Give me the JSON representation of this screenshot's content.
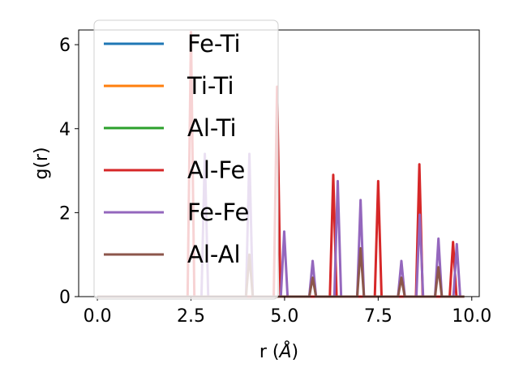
{
  "chart_data": {
    "type": "line",
    "title": "",
    "xlabel": "r (",
    "xlabel_unit": "Å",
    "xlabel_close": ")",
    "ylabel": "g(r)",
    "xlim": [
      -0.5,
      10.2
    ],
    "ylim": [
      0,
      6.35
    ],
    "xticks": [
      0.0,
      2.5,
      5.0,
      7.5,
      10.0
    ],
    "xtick_labels": [
      "0.0",
      "2.5",
      "5.0",
      "7.5",
      "10.0"
    ],
    "yticks": [
      0,
      2,
      4,
      6
    ],
    "ytick_labels": [
      "0",
      "2",
      "4",
      "6"
    ],
    "grid": false,
    "legend_position": "top-left",
    "peak_width": 0.09,
    "series": [
      {
        "name": "Fe-Ti",
        "color": "#1f77b4",
        "peaks": []
      },
      {
        "name": "Ti-Ti",
        "color": "#ff7f0e",
        "peaks": []
      },
      {
        "name": "Al-Ti",
        "color": "#2ca02c",
        "peaks": []
      },
      {
        "name": "Al-Fe",
        "color": "#d62728",
        "peaks": [
          {
            "r": 2.5,
            "g": 6.3
          },
          {
            "r": 4.8,
            "g": 5.0
          },
          {
            "r": 6.3,
            "g": 2.9
          },
          {
            "r": 7.5,
            "g": 2.75
          },
          {
            "r": 8.6,
            "g": 3.15
          },
          {
            "r": 9.5,
            "g": 1.3
          }
        ]
      },
      {
        "name": "Fe-Fe",
        "color": "#9467bd",
        "peaks": [
          {
            "r": 2.87,
            "g": 3.4
          },
          {
            "r": 4.06,
            "g": 3.4
          },
          {
            "r": 4.99,
            "g": 1.55
          },
          {
            "r": 5.75,
            "g": 0.85
          },
          {
            "r": 6.42,
            "g": 2.75
          },
          {
            "r": 7.03,
            "g": 2.3
          },
          {
            "r": 8.12,
            "g": 0.85
          },
          {
            "r": 8.61,
            "g": 1.95
          },
          {
            "r": 9.11,
            "g": 1.38
          },
          {
            "r": 9.6,
            "g": 1.25
          }
        ]
      },
      {
        "name": "Al-Al",
        "color": "#8c564b",
        "peaks": [
          {
            "r": 4.06,
            "g": 1.0
          },
          {
            "r": 5.75,
            "g": 0.45
          },
          {
            "r": 7.03,
            "g": 1.15
          },
          {
            "r": 8.12,
            "g": 0.45
          },
          {
            "r": 9.11,
            "g": 0.7
          }
        ]
      }
    ]
  }
}
